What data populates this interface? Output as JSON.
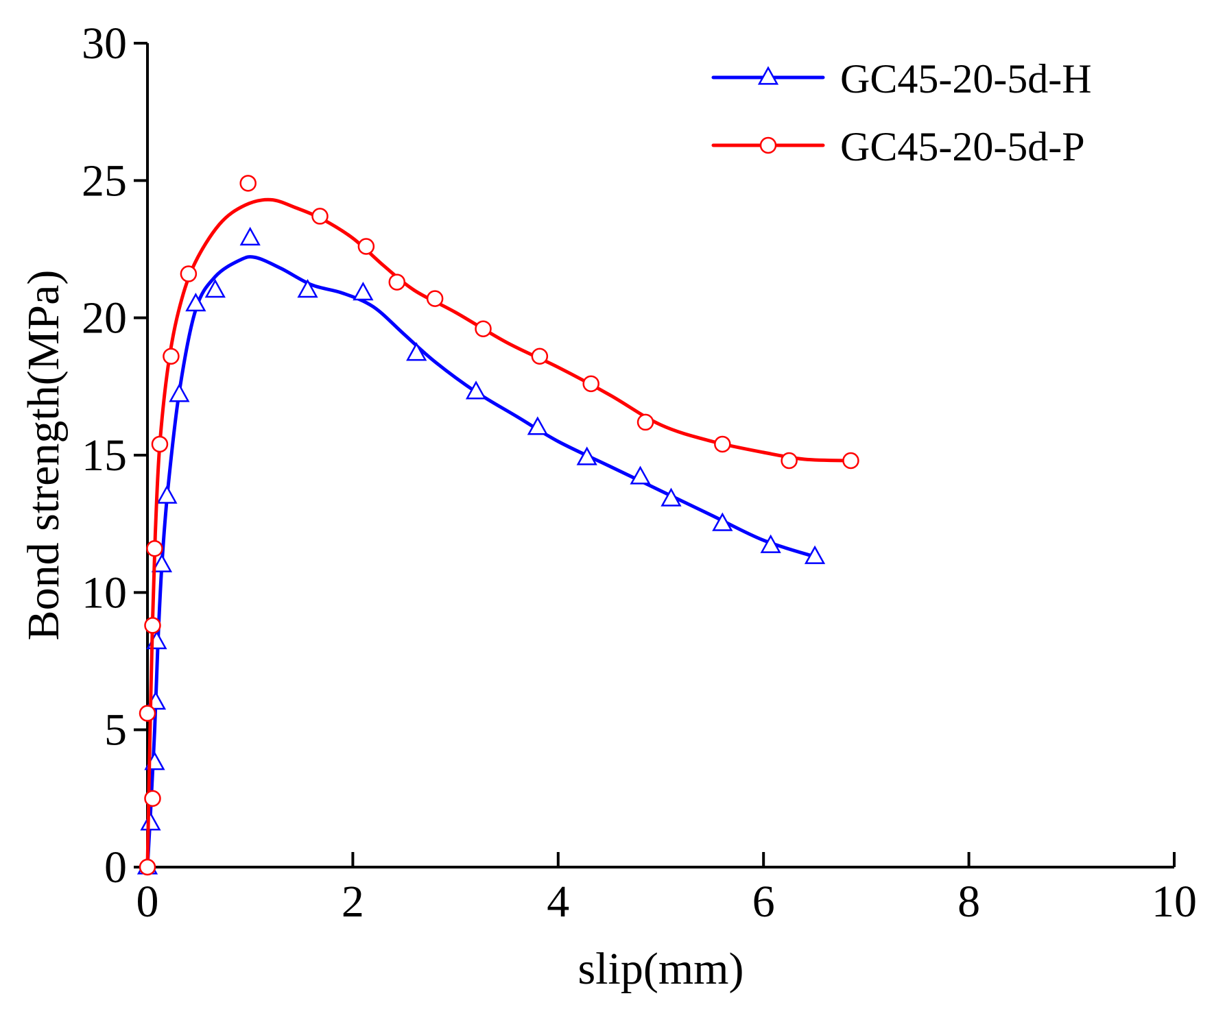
{
  "chart_data": {
    "type": "line",
    "title": "",
    "xlabel": "slip(mm)",
    "ylabel": "Bond strength(MPa)",
    "xlim": [
      0,
      10
    ],
    "ylim": [
      0,
      30
    ],
    "xticks": [
      0,
      2,
      4,
      6,
      8,
      10
    ],
    "yticks": [
      0,
      5,
      10,
      15,
      20,
      25,
      30
    ],
    "grid": false,
    "legend_position": "top-right",
    "series": [
      {
        "name": "GC45-20-5d-H",
        "color": "#0000ff",
        "marker": "triangle",
        "points": [
          [
            0.0,
            0.0
          ],
          [
            0.03,
            1.6
          ],
          [
            0.07,
            3.8
          ],
          [
            0.08,
            6.0
          ],
          [
            0.09,
            8.2
          ],
          [
            0.14,
            11.0
          ],
          [
            0.19,
            13.5
          ],
          [
            0.31,
            17.2
          ],
          [
            0.47,
            20.5
          ],
          [
            0.66,
            21.0
          ],
          [
            1.0,
            22.9
          ],
          [
            1.56,
            21.0
          ],
          [
            2.1,
            20.9
          ],
          [
            2.62,
            18.7
          ],
          [
            3.2,
            17.3
          ],
          [
            3.8,
            16.0
          ],
          [
            4.28,
            14.9
          ],
          [
            4.8,
            14.2
          ],
          [
            5.1,
            13.4
          ],
          [
            5.6,
            12.5
          ],
          [
            6.07,
            11.7
          ],
          [
            6.5,
            11.3
          ]
        ],
        "curve": [
          [
            0.0,
            0.0
          ],
          [
            0.03,
            2.0
          ],
          [
            0.07,
            5.0
          ],
          [
            0.1,
            8.0
          ],
          [
            0.14,
            11.0
          ],
          [
            0.2,
            13.8
          ],
          [
            0.31,
            17.3
          ],
          [
            0.47,
            20.3
          ],
          [
            0.66,
            21.5
          ],
          [
            0.9,
            22.1
          ],
          [
            1.05,
            22.2
          ],
          [
            1.3,
            21.8
          ],
          [
            1.6,
            21.2
          ],
          [
            1.9,
            20.9
          ],
          [
            2.2,
            20.4
          ],
          [
            2.5,
            19.4
          ],
          [
            2.8,
            18.4
          ],
          [
            3.2,
            17.3
          ],
          [
            3.6,
            16.4
          ],
          [
            4.0,
            15.5
          ],
          [
            4.5,
            14.6
          ],
          [
            5.0,
            13.7
          ],
          [
            5.5,
            12.8
          ],
          [
            6.0,
            11.9
          ],
          [
            6.5,
            11.3
          ]
        ]
      },
      {
        "name": "GC45-20-5d-P",
        "color": "#ff0000",
        "marker": "circle",
        "points": [
          [
            0.0,
            0.0
          ],
          [
            0.05,
            2.5
          ],
          [
            0.0,
            5.6
          ],
          [
            0.05,
            8.8
          ],
          [
            0.07,
            11.6
          ],
          [
            0.12,
            15.4
          ],
          [
            0.23,
            18.6
          ],
          [
            0.4,
            21.6
          ],
          [
            0.98,
            24.9
          ],
          [
            1.68,
            23.7
          ],
          [
            2.13,
            22.6
          ],
          [
            2.43,
            21.3
          ],
          [
            2.8,
            20.7
          ],
          [
            3.27,
            19.6
          ],
          [
            3.82,
            18.6
          ],
          [
            4.32,
            17.6
          ],
          [
            4.85,
            16.2
          ],
          [
            5.6,
            15.4
          ],
          [
            6.25,
            14.8
          ],
          [
            6.85,
            14.8
          ]
        ],
        "curve": [
          [
            0.0,
            0.0
          ],
          [
            0.02,
            4.0
          ],
          [
            0.05,
            9.0
          ],
          [
            0.08,
            12.5
          ],
          [
            0.12,
            15.4
          ],
          [
            0.2,
            18.2
          ],
          [
            0.3,
            20.2
          ],
          [
            0.45,
            21.9
          ],
          [
            0.7,
            23.4
          ],
          [
            0.95,
            24.1
          ],
          [
            1.2,
            24.3
          ],
          [
            1.45,
            24.0
          ],
          [
            1.7,
            23.6
          ],
          [
            2.0,
            22.9
          ],
          [
            2.3,
            21.9
          ],
          [
            2.6,
            21.0
          ],
          [
            3.0,
            20.2
          ],
          [
            3.5,
            19.1
          ],
          [
            4.0,
            18.2
          ],
          [
            4.5,
            17.2
          ],
          [
            5.0,
            16.1
          ],
          [
            5.5,
            15.5
          ],
          [
            6.0,
            15.1
          ],
          [
            6.4,
            14.85
          ],
          [
            6.85,
            14.8
          ]
        ]
      }
    ]
  }
}
